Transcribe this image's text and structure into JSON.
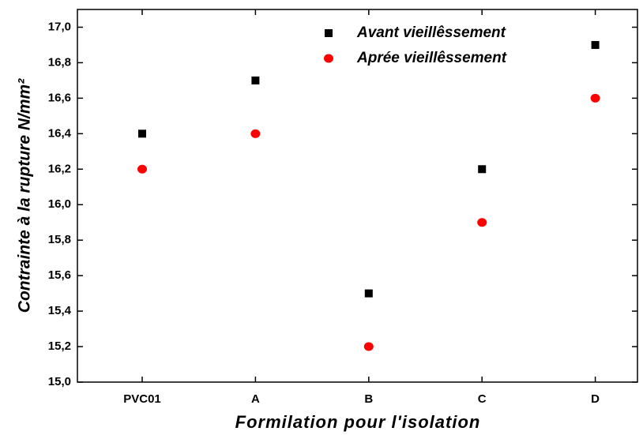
{
  "chart_data": {
    "type": "scatter",
    "y_label": "Contrainte à la rupture N/mm²",
    "x_label": "Formilation pour l'isolation",
    "categories": [
      "PVC01",
      "A",
      "B",
      "C",
      "D"
    ],
    "series": [
      {
        "name": "Avant vieillêssement",
        "color": "#000000",
        "marker": "square",
        "values": [
          16.4,
          16.7,
          15.5,
          16.2,
          16.9
        ]
      },
      {
        "name": "Aprée vieillêssement",
        "color": "#ff0000",
        "marker": "circle",
        "values": [
          16.2,
          16.4,
          15.2,
          15.9,
          16.6
        ]
      }
    ],
    "ylim": [
      15.0,
      17.1
    ],
    "yticks": [
      {
        "value": 15.0,
        "label": "15,0"
      },
      {
        "value": 15.2,
        "label": "15,2"
      },
      {
        "value": 15.4,
        "label": "15,4"
      },
      {
        "value": 15.6,
        "label": "15,6"
      },
      {
        "value": 15.8,
        "label": "15,8"
      },
      {
        "value": 16.0,
        "label": "16,0"
      },
      {
        "value": 16.2,
        "label": "16,2"
      },
      {
        "value": 16.4,
        "label": "16,4"
      },
      {
        "value": 16.6,
        "label": "16,6"
      },
      {
        "value": 16.8,
        "label": "16,8"
      },
      {
        "value": 17.0,
        "label": "17,0"
      }
    ],
    "legend": "upper-right",
    "grid": false
  }
}
